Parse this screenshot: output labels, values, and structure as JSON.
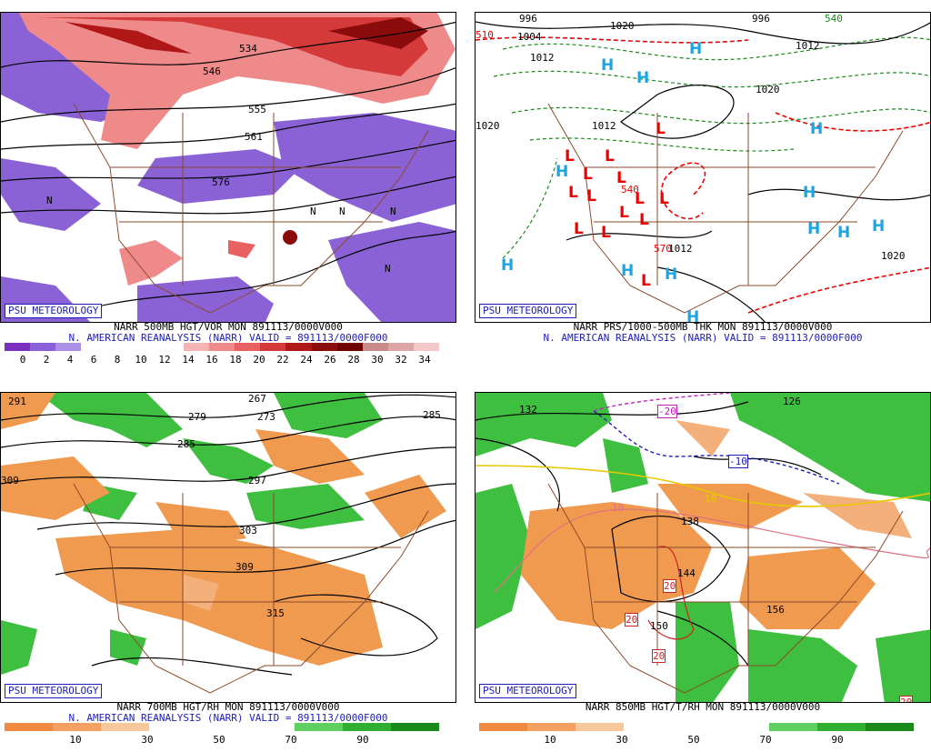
{
  "panels": {
    "p1": {
      "badge": "PSU METEOROLOGY",
      "caption1": "NARR 500MB HGT/VOR MON 891113/0000V000",
      "caption2": "N. AMERICAN REANALYSIS (NARR) VALID = 891113/0000F000",
      "scale_colors": [
        "#7b2fbf",
        "#8b5fd8",
        "#a98fe6",
        "#ffffff",
        "#ffffff",
        "#ffffff",
        "#ffffff",
        "#f6b3b3",
        "#ef8a8a",
        "#e86060",
        "#d43a3a",
        "#b01818",
        "#8a0c0c",
        "#6e0000",
        "#c98a8a",
        "#dca6a6",
        "#f2c8c8"
      ],
      "scale_ticks": [
        "0",
        "2",
        "4",
        "6",
        "8",
        "10",
        "12",
        "14",
        "16",
        "18",
        "20",
        "22",
        "24",
        "26",
        "28",
        "30",
        "32",
        "34"
      ],
      "labels": [
        "555",
        "534",
        "546",
        "561",
        "576",
        "N",
        "N",
        "N",
        "N",
        "N"
      ]
    },
    "p2": {
      "badge": "PSU METEOROLOGY",
      "caption1": "NARR PRS/1000-500MB THK MON 891113/0000V000",
      "caption2": "N. AMERICAN REANALYSIS (NARR) VALID = 891113/0000F000",
      "highs": [
        "H",
        "H",
        "H",
        "H",
        "H",
        "H",
        "H",
        "H",
        "H",
        "H",
        "H",
        "H",
        "H"
      ],
      "lows": [
        "L",
        "L",
        "L",
        "L",
        "L",
        "L",
        "L",
        "L",
        "L",
        "L",
        "L",
        "L",
        "L",
        "L"
      ],
      "labels": [
        "996",
        "1004",
        "1012",
        "1020",
        "996",
        "1012",
        "1020",
        "1012",
        "1020",
        "1012",
        "1020",
        "540",
        "510",
        "570",
        "540"
      ]
    },
    "p3": {
      "badge": "PSU METEOROLOGY",
      "caption1": "NARR 700MB HGT/RH MON 891113/0000V000",
      "caption2": "N. AMERICAN REANALYSIS (NARR) VALID = 891113/0000F000",
      "scale_colors": [
        "#f08a40",
        "#f4a060",
        "#f8c89a",
        "#ffffff",
        "#ffffff",
        "#ffffff",
        "#5fcf5f",
        "#2fae2f",
        "#1a8a1a"
      ],
      "scale_ticks": [
        "10",
        "30",
        "50",
        "70",
        "90"
      ],
      "labels": [
        "291",
        "267",
        "279",
        "273",
        "285",
        "285",
        "309",
        "297",
        "303",
        "309",
        "315"
      ]
    },
    "p4": {
      "badge": "PSU METEOROLOGY",
      "caption1": "NARR 850MB HGT/T/RH MON 891113/0000V000",
      "scale_colors": [
        "#f08a40",
        "#f4a060",
        "#f8c89a",
        "#ffffff",
        "#ffffff",
        "#ffffff",
        "#5fcf5f",
        "#2fae2f",
        "#1a8a1a"
      ],
      "scale_ticks": [
        "10",
        "30",
        "50",
        "70",
        "90"
      ],
      "labels": [
        "126",
        "132",
        "-20",
        "-10",
        "10",
        "138",
        "144",
        "150",
        "156",
        "20",
        "20",
        "20",
        "20",
        "10"
      ]
    }
  }
}
